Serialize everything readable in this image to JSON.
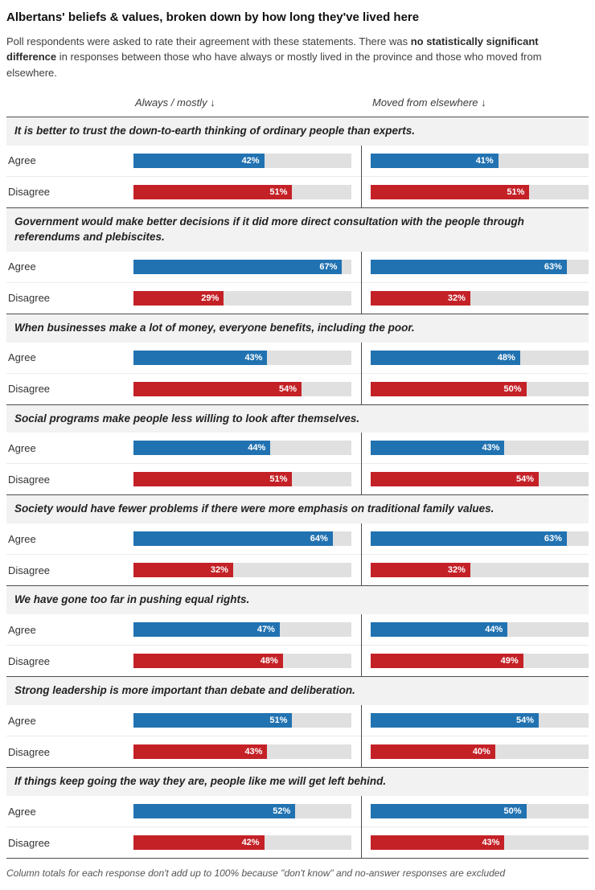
{
  "page": {
    "title": "Albertans' beliefs & values, broken down by how long they've lived here",
    "subtitle_part1": "Poll respondents were asked to rate their agreement with these statements. There was ",
    "subtitle_bold": "no statistically significant difference",
    "subtitle_part2": " in responses between those who have always or mostly lived in the province and those who moved from elsewhere.",
    "footnote": "Column totals for each response don't add up to 100% because \"don't know\" and no-answer responses are excluded"
  },
  "chart_data": {
    "type": "bar",
    "orientation": "horizontal",
    "columns": [
      "Always / mostly ↓",
      "Moved from elsewhere ↓"
    ],
    "value_suffix": "%",
    "xlim": [
      0,
      70
    ],
    "colors": {
      "agree": "#2172b1",
      "disagree": "#c42127",
      "track": "#e0e0e0"
    },
    "statements": [
      {
        "text": "It is better to trust the down-to-earth thinking of ordinary people than experts.",
        "rows": [
          {
            "label": "Agree",
            "series": "agree",
            "values": [
              42,
              41
            ]
          },
          {
            "label": "Disagree",
            "series": "disagree",
            "values": [
              51,
              51
            ]
          }
        ]
      },
      {
        "text": "Government would make better decisions if it did more direct consultation with the people through referendums and plebiscites.",
        "rows": [
          {
            "label": "Agree",
            "series": "agree",
            "values": [
              67,
              63
            ]
          },
          {
            "label": "Disagree",
            "series": "disagree",
            "values": [
              29,
              32
            ]
          }
        ]
      },
      {
        "text": "When businesses make a lot of money, everyone benefits, including the poor.",
        "rows": [
          {
            "label": "Agree",
            "series": "agree",
            "values": [
              43,
              48
            ]
          },
          {
            "label": "Disagree",
            "series": "disagree",
            "values": [
              54,
              50
            ]
          }
        ]
      },
      {
        "text": "Social programs make people less willing to look after themselves.",
        "rows": [
          {
            "label": "Agree",
            "series": "agree",
            "values": [
              44,
              43
            ]
          },
          {
            "label": "Disagree",
            "series": "disagree",
            "values": [
              51,
              54
            ]
          }
        ]
      },
      {
        "text": "Society would have fewer problems if there were more emphasis on traditional family values.",
        "rows": [
          {
            "label": "Agree",
            "series": "agree",
            "values": [
              64,
              63
            ]
          },
          {
            "label": "Disagree",
            "series": "disagree",
            "values": [
              32,
              32
            ]
          }
        ]
      },
      {
        "text": "We have gone too far in pushing equal rights.",
        "rows": [
          {
            "label": "Agree",
            "series": "agree",
            "values": [
              47,
              44
            ]
          },
          {
            "label": "Disagree",
            "series": "disagree",
            "values": [
              48,
              49
            ]
          }
        ]
      },
      {
        "text": "Strong leadership is more important than debate and deliberation.",
        "rows": [
          {
            "label": "Agree",
            "series": "agree",
            "values": [
              51,
              54
            ]
          },
          {
            "label": "Disagree",
            "series": "disagree",
            "values": [
              43,
              40
            ]
          }
        ]
      },
      {
        "text": "If things keep going the way they are, people like me will get left behind.",
        "rows": [
          {
            "label": "Agree",
            "series": "agree",
            "values": [
              52,
              50
            ]
          },
          {
            "label": "Disagree",
            "series": "disagree",
            "values": [
              42,
              43
            ]
          }
        ]
      }
    ]
  }
}
